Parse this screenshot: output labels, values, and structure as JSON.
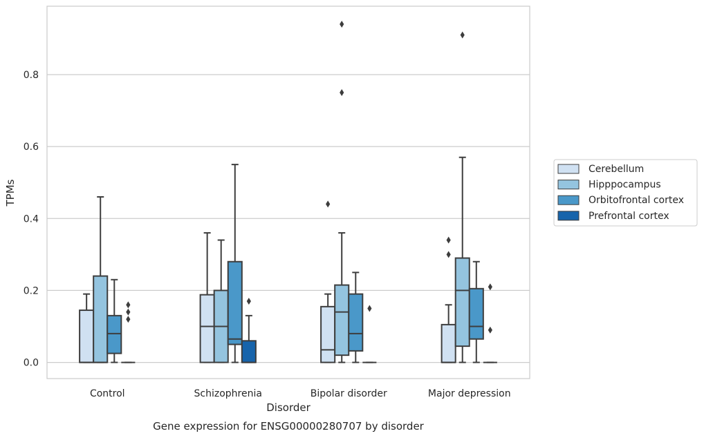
{
  "chart_data": {
    "type": "box",
    "title": "",
    "caption": "Gene expression for ENSG00000280707 by disorder",
    "xlabel": "Disorder",
    "ylabel": "TPMs",
    "ylim": [
      -0.045,
      0.99
    ],
    "yticks": [
      "0.0",
      "0.2",
      "0.4",
      "0.6",
      "0.8"
    ],
    "ytick_values": [
      0.0,
      0.2,
      0.4,
      0.6,
      0.8
    ],
    "grid": "horizontal",
    "legend_position": "right",
    "categories": [
      "Control",
      "Schizophrenia",
      "Bipolar disorder",
      "Major depression"
    ],
    "series": [
      {
        "name": "Cerebellum",
        "color": "#d0e1f2",
        "boxes": [
          {
            "whislo": 0.0,
            "q1": 0.0,
            "med": 0.0,
            "q3": 0.145,
            "whishi": 0.19,
            "fliers": []
          },
          {
            "whislo": 0.0,
            "q1": 0.0,
            "med": 0.1,
            "q3": 0.188,
            "whishi": 0.36,
            "fliers": []
          },
          {
            "whislo": 0.0,
            "q1": 0.0,
            "med": 0.035,
            "q3": 0.155,
            "whishi": 0.19,
            "fliers": [
              0.44
            ]
          },
          {
            "whislo": 0.0,
            "q1": 0.0,
            "med": 0.0,
            "q3": 0.105,
            "whishi": 0.16,
            "fliers": [
              0.3,
              0.34
            ]
          }
        ]
      },
      {
        "name": "Hipppocampus",
        "color": "#94c4df",
        "boxes": [
          {
            "whislo": 0.0,
            "q1": 0.0,
            "med": 0.0,
            "q3": 0.24,
            "whishi": 0.46,
            "fliers": []
          },
          {
            "whislo": 0.0,
            "q1": 0.0,
            "med": 0.1,
            "q3": 0.2,
            "whishi": 0.34,
            "fliers": []
          },
          {
            "whislo": 0.0,
            "q1": 0.02,
            "med": 0.14,
            "q3": 0.215,
            "whishi": 0.36,
            "fliers": [
              0.75,
              0.94
            ]
          },
          {
            "whislo": 0.0,
            "q1": 0.045,
            "med": 0.2,
            "q3": 0.29,
            "whishi": 0.57,
            "fliers": [
              0.91
            ]
          }
        ]
      },
      {
        "name": "Orbitofrontal cortex",
        "color": "#4a98c9",
        "boxes": [
          {
            "whislo": 0.0,
            "q1": 0.025,
            "med": 0.08,
            "q3": 0.13,
            "whishi": 0.23,
            "fliers": []
          },
          {
            "whislo": 0.0,
            "q1": 0.05,
            "med": 0.065,
            "q3": 0.28,
            "whishi": 0.55,
            "fliers": []
          },
          {
            "whislo": 0.0,
            "q1": 0.032,
            "med": 0.08,
            "q3": 0.19,
            "whishi": 0.25,
            "fliers": []
          },
          {
            "whislo": 0.0,
            "q1": 0.065,
            "med": 0.1,
            "q3": 0.205,
            "whishi": 0.28,
            "fliers": []
          }
        ]
      },
      {
        "name": "Prefrontal cortex",
        "color": "#1764ab",
        "boxes": [
          {
            "whislo": 0.0,
            "q1": 0.0,
            "med": 0.0,
            "q3": 0.0,
            "whishi": 0.0,
            "fliers": [
              0.12,
              0.14,
              0.16
            ]
          },
          {
            "whislo": 0.0,
            "q1": 0.0,
            "med": 0.0,
            "q3": 0.06,
            "whishi": 0.13,
            "fliers": [
              0.17
            ]
          },
          {
            "whislo": 0.0,
            "q1": 0.0,
            "med": 0.0,
            "q3": 0.0,
            "whishi": 0.0,
            "fliers": [
              0.15
            ]
          },
          {
            "whislo": 0.0,
            "q1": 0.0,
            "med": 0.0,
            "q3": 0.0,
            "whishi": 0.0,
            "fliers": [
              0.09,
              0.21
            ]
          }
        ]
      }
    ]
  }
}
